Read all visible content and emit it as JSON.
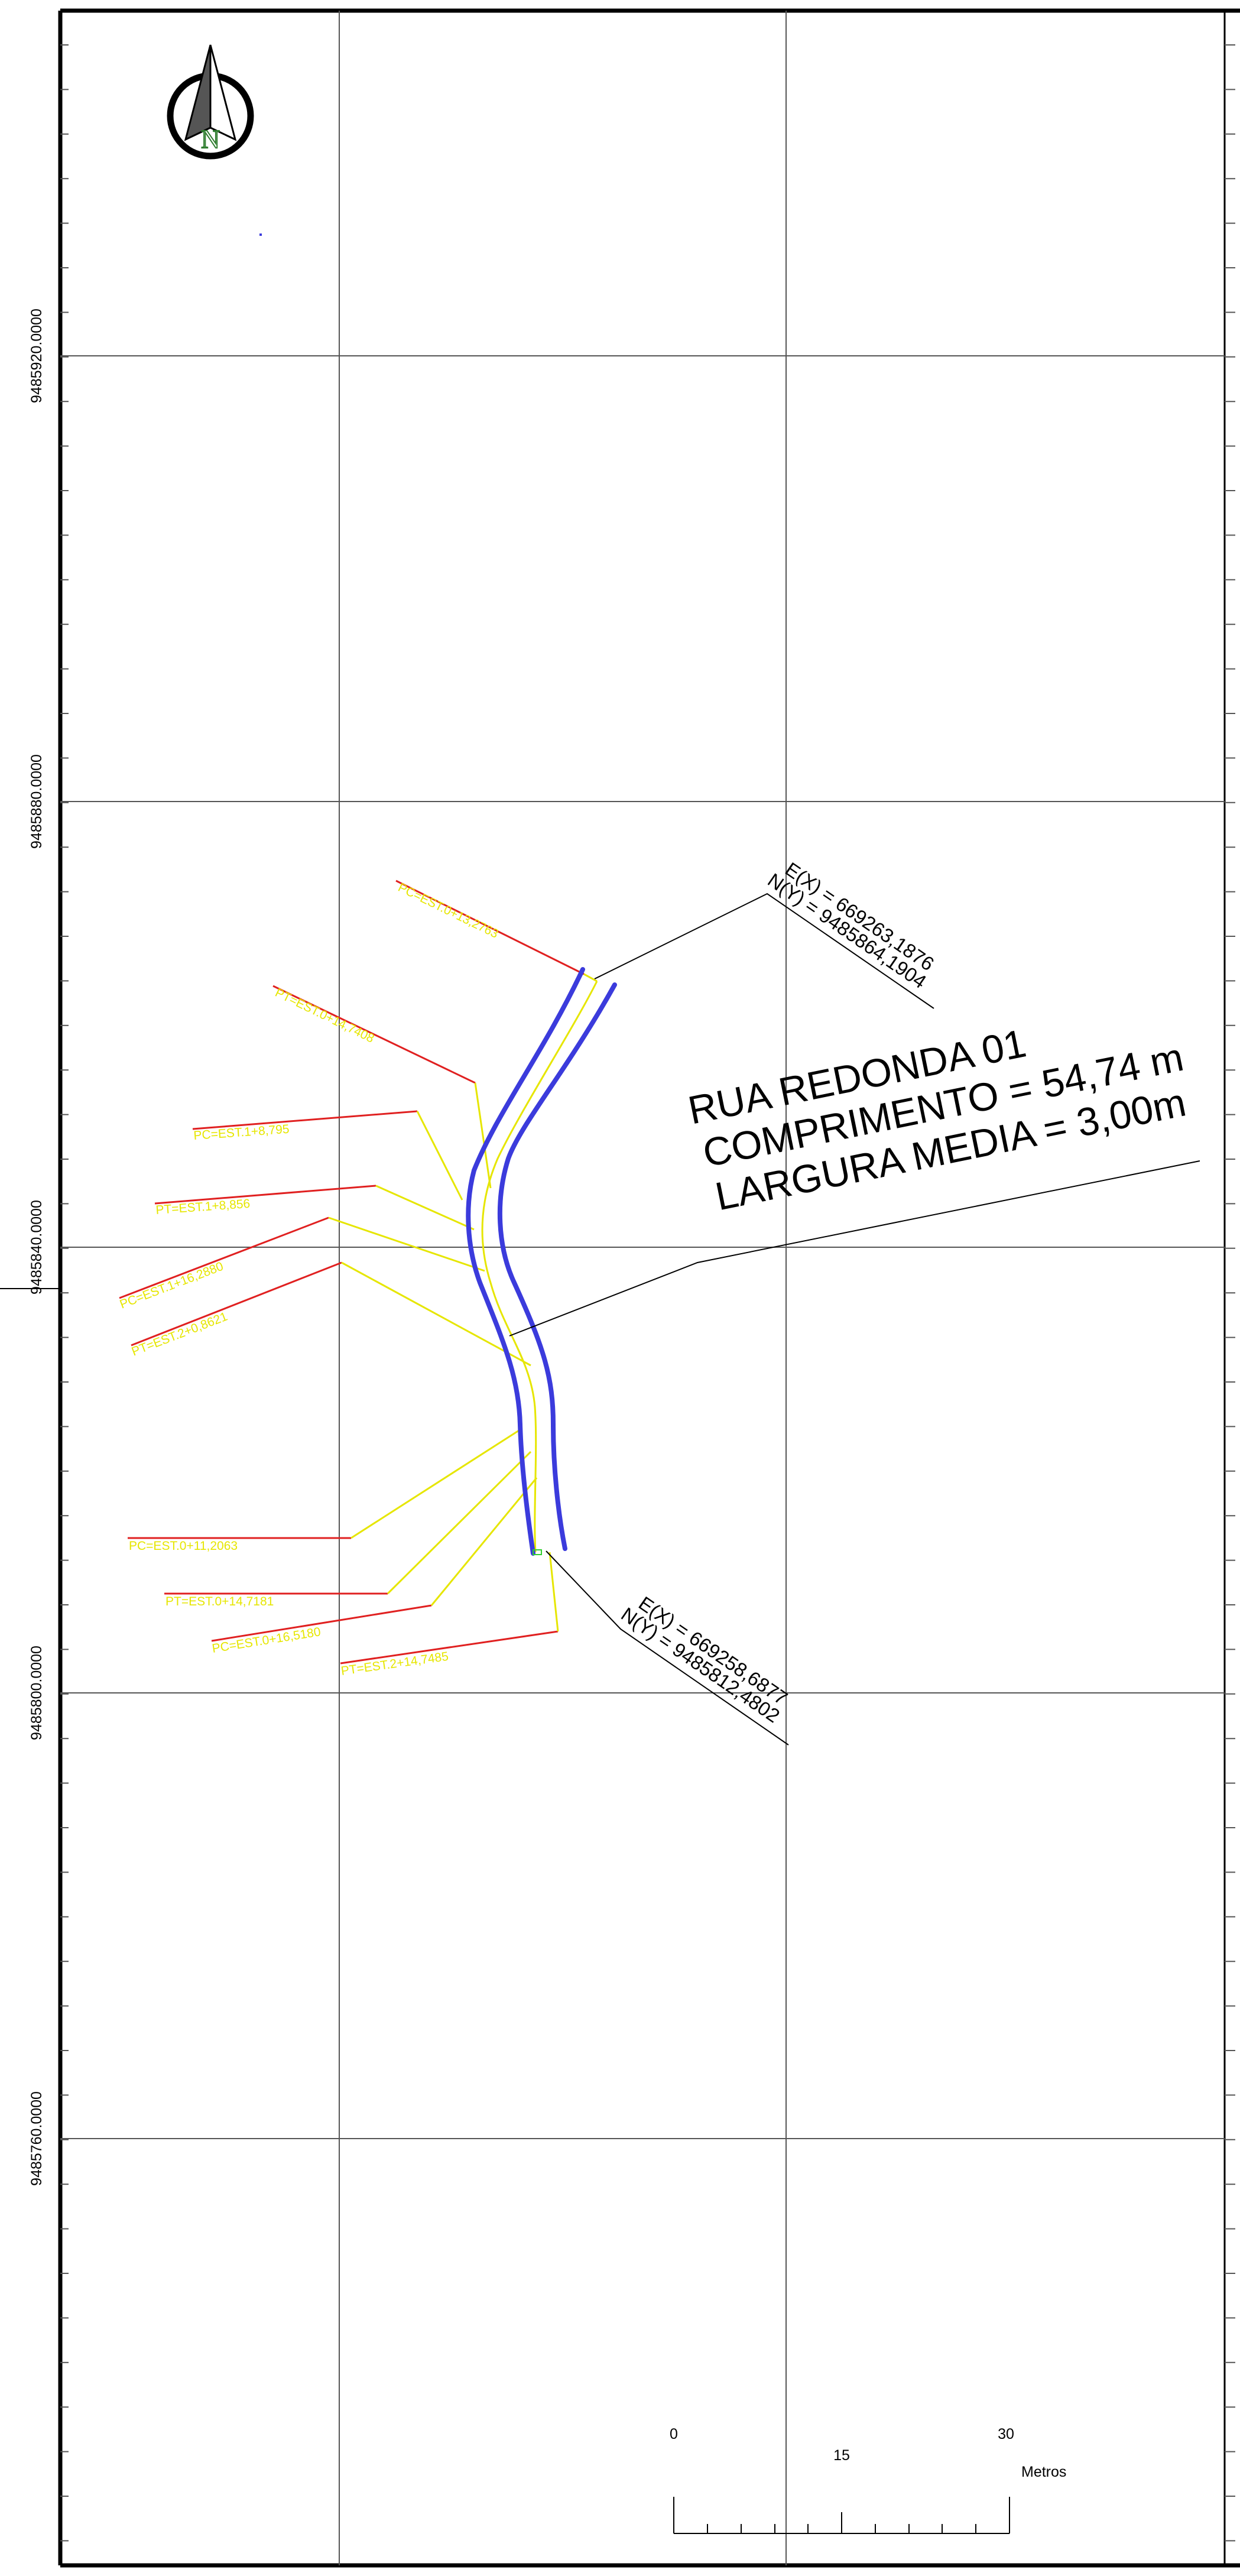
{
  "grid": {
    "y_labels": [
      "9485920.0000",
      "9485880.0000",
      "9485840.0000",
      "9485800.0000",
      "9485760.0000"
    ]
  },
  "north_arrow": {
    "letter": "N"
  },
  "street": {
    "name": "RUA REDONDA 01",
    "length": "COMPRIMENTO = 54,74 m",
    "width": "LARGURA MEDIA = 3,00m"
  },
  "coord_start": {
    "e": "E(X) = 669263,1876",
    "n": "N(Y) = 9485864,1904"
  },
  "coord_end": {
    "e": "E(X) = 669258,6877",
    "n": "N(Y) = 9485812,4802"
  },
  "station_labels": [
    "PC=EST.0+13,2763",
    "PT=EST.0+14,7408",
    "PC=EST.1+8,795",
    "PT=EST.1+8,856",
    "PC=EST.1+16,2880",
    "PT=EST.2+0,8621",
    "PC=EST.0+11,2063",
    "PT=EST.0+14,7181",
    "PC=EST.0+16,5180",
    "PT=EST.2+14,7485"
  ],
  "scale_bar": {
    "ticks": [
      "0",
      "15",
      "30"
    ],
    "unit": "Metros"
  },
  "colors": {
    "road": "#3b3bdc",
    "centerline": "#e6e600",
    "leader": "#e02020",
    "grid": "#555555",
    "north_accent": "#2f7d2f"
  }
}
